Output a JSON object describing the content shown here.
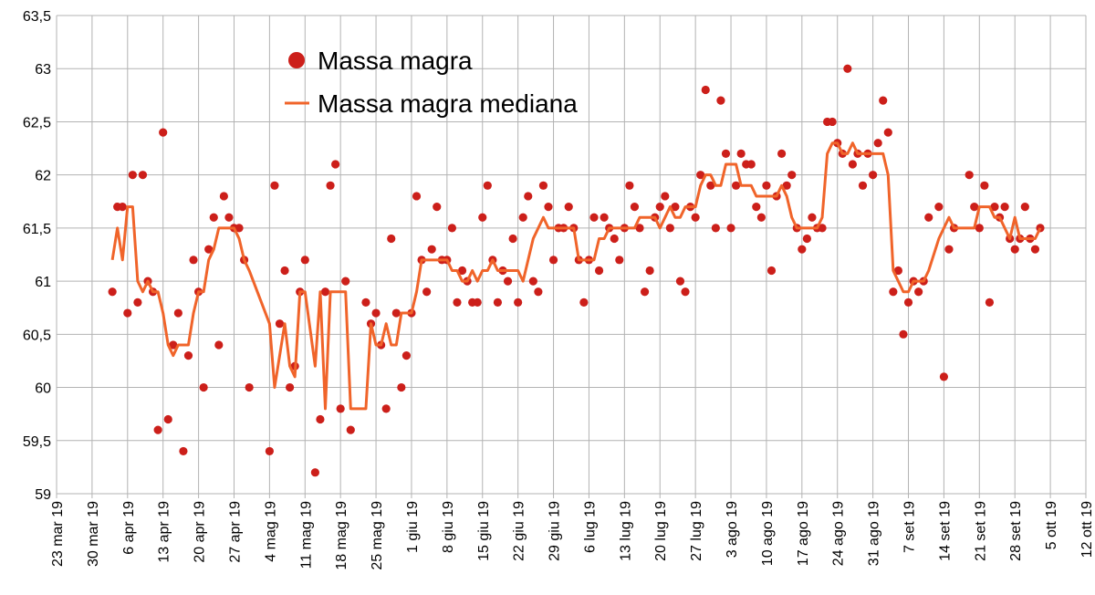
{
  "chart_data": {
    "type": "scatter",
    "legend": "top-center",
    "grid": true,
    "ylim": [
      59,
      63.5
    ],
    "yticks": [
      59,
      {
        "value": 59.5,
        "label": "59,5"
      },
      60,
      {
        "value": 60.5,
        "label": "60,5"
      },
      61,
      {
        "value": 61.5,
        "label": "61,5"
      },
      62,
      {
        "value": 62.5,
        "label": "62,5"
      },
      63,
      {
        "value": 63.5,
        "label": "63,5"
      }
    ],
    "xlim": [
      "2019-03-23",
      "2019-10-12"
    ],
    "xticks": [
      {
        "value": "2019-03-23",
        "label": "23 mar 19"
      },
      {
        "value": "2019-03-30",
        "label": "30 mar 19"
      },
      {
        "value": "2019-04-06",
        "label": "6 apr 19"
      },
      {
        "value": "2019-04-13",
        "label": "13 apr 19"
      },
      {
        "value": "2019-04-20",
        "label": "20 apr 19"
      },
      {
        "value": "2019-04-27",
        "label": "27 apr 19"
      },
      {
        "value": "2019-05-04",
        "label": "4 mag 19"
      },
      {
        "value": "2019-05-11",
        "label": "11 mag 19"
      },
      {
        "value": "2019-05-18",
        "label": "18 mag 19"
      },
      {
        "value": "2019-05-25",
        "label": "25 mag 19"
      },
      {
        "value": "2019-06-01",
        "label": "1 giu 19"
      },
      {
        "value": "2019-06-08",
        "label": "8 giu 19"
      },
      {
        "value": "2019-06-15",
        "label": "15 giu 19"
      },
      {
        "value": "2019-06-22",
        "label": "22 giu 19"
      },
      {
        "value": "2019-06-29",
        "label": "29 giu 19"
      },
      {
        "value": "2019-07-06",
        "label": "6 lug 19"
      },
      {
        "value": "2019-07-13",
        "label": "13 lug 19"
      },
      {
        "value": "2019-07-20",
        "label": "20 lug 19"
      },
      {
        "value": "2019-07-27",
        "label": "27 lug 19"
      },
      {
        "value": "2019-08-03",
        "label": "3 ago 19"
      },
      {
        "value": "2019-08-10",
        "label": "10 ago 19"
      },
      {
        "value": "2019-08-17",
        "label": "17 ago 19"
      },
      {
        "value": "2019-08-24",
        "label": "24 ago 19"
      },
      {
        "value": "2019-08-31",
        "label": "31 ago 19"
      },
      {
        "value": "2019-09-07",
        "label": "7 set 19"
      },
      {
        "value": "2019-09-14",
        "label": "14 set 19"
      },
      {
        "value": "2019-09-21",
        "label": "21 set 19"
      },
      {
        "value": "2019-09-28",
        "label": "28 set 19"
      },
      {
        "value": "2019-10-05",
        "label": "5 ott 19"
      },
      {
        "value": "2019-10-12",
        "label": "12 ott 19"
      }
    ],
    "x": [
      "2019-04-03",
      "2019-04-04",
      "2019-04-05",
      "2019-04-06",
      "2019-04-07",
      "2019-04-08",
      "2019-04-09",
      "2019-04-10",
      "2019-04-11",
      "2019-04-12",
      "2019-04-13",
      "2019-04-14",
      "2019-04-15",
      "2019-04-16",
      "2019-04-17",
      "2019-04-18",
      "2019-04-19",
      "2019-04-20",
      "2019-04-21",
      "2019-04-22",
      "2019-04-23",
      "2019-04-24",
      "2019-04-25",
      "2019-04-26",
      "2019-04-27",
      "2019-04-28",
      "2019-04-29",
      "2019-04-30",
      "2019-05-04",
      "2019-05-05",
      "2019-05-06",
      "2019-05-07",
      "2019-05-08",
      "2019-05-09",
      "2019-05-10",
      "2019-05-11",
      "2019-05-13",
      "2019-05-14",
      "2019-05-15",
      "2019-05-16",
      "2019-05-17",
      "2019-05-18",
      "2019-05-19",
      "2019-05-20",
      "2019-05-23",
      "2019-05-24",
      "2019-05-25",
      "2019-05-26",
      "2019-05-27",
      "2019-05-28",
      "2019-05-29",
      "2019-05-30",
      "2019-05-31",
      "2019-06-01",
      "2019-06-02",
      "2019-06-03",
      "2019-06-04",
      "2019-06-05",
      "2019-06-06",
      "2019-06-07",
      "2019-06-08",
      "2019-06-09",
      "2019-06-10",
      "2019-06-11",
      "2019-06-12",
      "2019-06-13",
      "2019-06-14",
      "2019-06-15",
      "2019-06-16",
      "2019-06-17",
      "2019-06-18",
      "2019-06-19",
      "2019-06-20",
      "2019-06-21",
      "2019-06-22",
      "2019-06-23",
      "2019-06-24",
      "2019-06-25",
      "2019-06-26",
      "2019-06-27",
      "2019-06-28",
      "2019-06-29",
      "2019-06-30",
      "2019-07-01",
      "2019-07-02",
      "2019-07-03",
      "2019-07-04",
      "2019-07-05",
      "2019-07-06",
      "2019-07-07",
      "2019-07-08",
      "2019-07-09",
      "2019-07-10",
      "2019-07-11",
      "2019-07-12",
      "2019-07-13",
      "2019-07-14",
      "2019-07-15",
      "2019-07-16",
      "2019-07-17",
      "2019-07-18",
      "2019-07-19",
      "2019-07-20",
      "2019-07-21",
      "2019-07-22",
      "2019-07-23",
      "2019-07-24",
      "2019-07-25",
      "2019-07-26",
      "2019-07-27",
      "2019-07-28",
      "2019-07-29",
      "2019-07-30",
      "2019-07-31",
      "2019-08-01",
      "2019-08-02",
      "2019-08-03",
      "2019-08-04",
      "2019-08-05",
      "2019-08-06",
      "2019-08-07",
      "2019-08-08",
      "2019-08-09",
      "2019-08-10",
      "2019-08-11",
      "2019-08-12",
      "2019-08-13",
      "2019-08-14",
      "2019-08-15",
      "2019-08-16",
      "2019-08-17",
      "2019-08-18",
      "2019-08-19",
      "2019-08-20",
      "2019-08-21",
      "2019-08-22",
      "2019-08-23",
      "2019-08-24",
      "2019-08-25",
      "2019-08-26",
      "2019-08-27",
      "2019-08-28",
      "2019-08-29",
      "2019-08-30",
      "2019-08-31",
      "2019-09-01",
      "2019-09-02",
      "2019-09-03",
      "2019-09-04",
      "2019-09-05",
      "2019-09-06",
      "2019-09-07",
      "2019-09-08",
      "2019-09-09",
      "2019-09-10",
      "2019-09-11",
      "2019-09-13",
      "2019-09-14",
      "2019-09-15",
      "2019-09-16",
      "2019-09-19",
      "2019-09-20",
      "2019-09-21",
      "2019-09-22",
      "2019-09-23",
      "2019-09-24",
      "2019-09-25",
      "2019-09-26",
      "2019-09-27",
      "2019-09-28",
      "2019-09-29",
      "2019-09-30",
      "2019-10-01",
      "2019-10-02",
      "2019-10-03"
    ],
    "series": [
      {
        "name": "Massa magra",
        "type": "scatter",
        "color": "#cc1f1a",
        "values": [
          60.9,
          61.7,
          61.7,
          60.7,
          62.0,
          60.8,
          62.0,
          61.0,
          60.9,
          59.6,
          62.4,
          59.7,
          60.4,
          60.7,
          59.4,
          60.3,
          61.2,
          60.9,
          60.0,
          61.3,
          61.6,
          60.4,
          61.8,
          61.6,
          61.5,
          61.5,
          61.2,
          60.0,
          59.4,
          61.9,
          60.6,
          61.1,
          60.0,
          60.2,
          60.9,
          61.2,
          59.2,
          59.7,
          60.9,
          61.9,
          62.1,
          59.8,
          61.0,
          59.6,
          60.8,
          60.6,
          60.7,
          60.4,
          59.8,
          61.4,
          60.7,
          60.0,
          60.3,
          60.7,
          61.8,
          61.2,
          60.9,
          61.3,
          61.7,
          61.2,
          61.2,
          61.5,
          60.8,
          61.1,
          61.0,
          60.8,
          60.8,
          61.6,
          61.9,
          61.2,
          60.8,
          61.1,
          61.0,
          61.4,
          60.8,
          61.6,
          61.8,
          61.0,
          60.9,
          61.9,
          61.7,
          61.2,
          61.5,
          61.5,
          61.7,
          61.5,
          61.2,
          60.8,
          61.2,
          61.6,
          61.1,
          61.6,
          61.5,
          61.4,
          61.2,
          61.5,
          61.9,
          61.7,
          61.5,
          60.9,
          61.1,
          61.6,
          61.7,
          61.8,
          61.5,
          61.7,
          61.0,
          60.9,
          61.7,
          61.6,
          62.0,
          62.8,
          61.9,
          61.5,
          62.7,
          62.2,
          61.5,
          61.9,
          62.2,
          62.1,
          62.1,
          61.7,
          61.6,
          61.9,
          61.1,
          61.8,
          62.2,
          61.9,
          62.0,
          61.5,
          61.3,
          61.4,
          61.6,
          61.5,
          61.5,
          62.5,
          62.5,
          62.3,
          62.2,
          63.0,
          62.1,
          62.2,
          61.9,
          62.2,
          62.0,
          62.3,
          62.7,
          62.4,
          60.9,
          61.1,
          60.5,
          60.8,
          61.0,
          60.9,
          61.0,
          61.6,
          61.7,
          60.1,
          61.3,
          61.5,
          62.0,
          61.7,
          61.5,
          61.9,
          60.8,
          61.7,
          61.6,
          61.7,
          61.4,
          61.3,
          61.4,
          61.7,
          61.4,
          61.3,
          61.5
        ]
      },
      {
        "name": "Massa magra mediana",
        "type": "line",
        "color": "#f0642a",
        "values": [
          61.2,
          61.5,
          61.2,
          61.7,
          61.7,
          61.0,
          60.9,
          61.0,
          60.9,
          60.9,
          60.7,
          60.4,
          60.3,
          60.4,
          60.4,
          60.4,
          60.7,
          60.9,
          60.9,
          61.2,
          61.3,
          61.5,
          61.5,
          61.5,
          61.5,
          61.4,
          61.2,
          61.1,
          60.6,
          60.0,
          60.3,
          60.6,
          60.2,
          60.1,
          60.9,
          60.9,
          60.2,
          60.9,
          59.8,
          60.9,
          60.9,
          60.9,
          60.9,
          59.8,
          59.8,
          60.6,
          60.4,
          60.4,
          60.6,
          60.4,
          60.4,
          60.7,
          60.7,
          60.7,
          60.9,
          61.2,
          61.2,
          61.2,
          61.2,
          61.2,
          61.2,
          61.1,
          61.1,
          61.0,
          61.0,
          61.1,
          61.0,
          61.1,
          61.1,
          61.2,
          61.1,
          61.1,
          61.1,
          61.1,
          61.1,
          61.0,
          61.2,
          61.4,
          61.5,
          61.6,
          61.5,
          61.5,
          61.5,
          61.5,
          61.5,
          61.5,
          61.2,
          61.2,
          61.2,
          61.2,
          61.4,
          61.4,
          61.5,
          61.5,
          61.5,
          61.5,
          61.5,
          61.5,
          61.6,
          61.6,
          61.6,
          61.6,
          61.5,
          61.6,
          61.7,
          61.6,
          61.6,
          61.7,
          61.7,
          61.7,
          61.9,
          62.0,
          62.0,
          61.9,
          61.9,
          62.1,
          62.1,
          62.1,
          61.9,
          61.9,
          61.9,
          61.8,
          61.8,
          61.8,
          61.8,
          61.8,
          61.9,
          61.8,
          61.6,
          61.5,
          61.5,
          61.5,
          61.5,
          61.5,
          61.6,
          62.2,
          62.3,
          62.3,
          62.2,
          62.2,
          62.3,
          62.2,
          62.2,
          62.2,
          62.2,
          62.2,
          62.2,
          62.0,
          61.1,
          61.0,
          60.9,
          60.9,
          61.0,
          61.0,
          61.0,
          61.1,
          61.4,
          61.5,
          61.6,
          61.5,
          61.5,
          61.5,
          61.7,
          61.7,
          61.7,
          61.6,
          61.6,
          61.5,
          61.4,
          61.6,
          61.4,
          61.4,
          61.4,
          61.4,
          61.5
        ]
      }
    ]
  }
}
